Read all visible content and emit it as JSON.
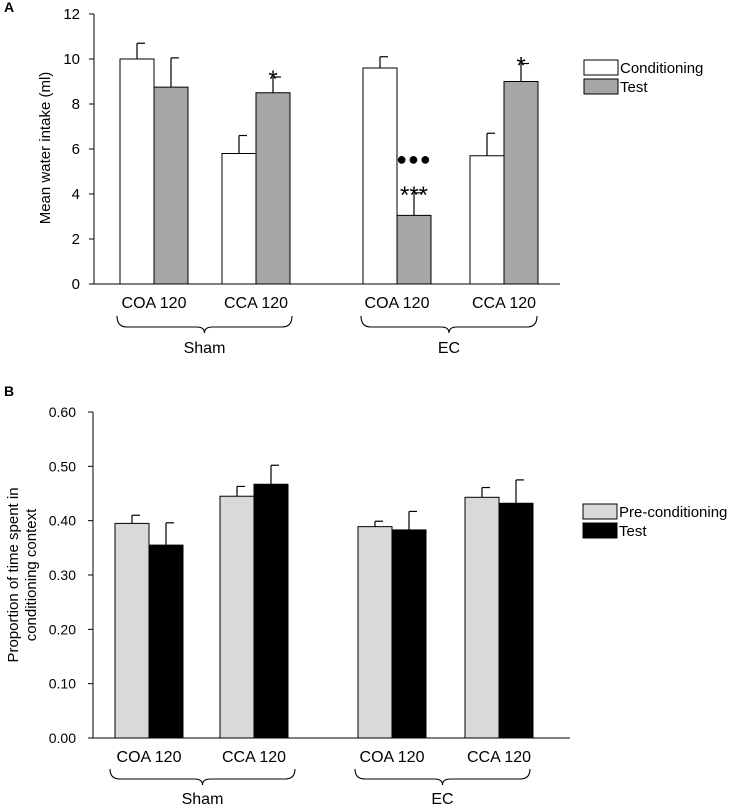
{
  "panels": [
    {
      "label": "A",
      "ylabel": "Mean water intake (ml)",
      "ylim": [
        0,
        12
      ],
      "yticks": [
        "0",
        "2",
        "4",
        "6",
        "8",
        "10",
        "12"
      ],
      "legend": [
        "Conditioning",
        "Test"
      ],
      "colors": [
        "#ffffff",
        "#a6a6a6"
      ]
    },
    {
      "label": "B",
      "ylabel_lines": [
        "Proportion of time spent in",
        "conditioning context"
      ],
      "ylim": [
        0,
        0.6
      ],
      "yticks": [
        "0.00",
        "0.10",
        "0.20",
        "0.30",
        "0.40",
        "0.50",
        "0.60"
      ],
      "legend": [
        "Pre-conditioning",
        "Test"
      ],
      "colors": [
        "#d9d9d9",
        "#000000"
      ]
    }
  ],
  "chart_data": [
    {
      "type": "bar",
      "title": "A",
      "xlabel": "",
      "ylabel": "Mean water intake (ml)",
      "ylim": [
        0,
        12
      ],
      "categories": [
        "COA 120",
        "CCA 120",
        "COA 120",
        "CCA 120"
      ],
      "groups": [
        "Sham",
        "EC"
      ],
      "series": [
        {
          "name": "Conditioning",
          "values": [
            10.0,
            5.8,
            9.6,
            5.7
          ],
          "errors": [
            0.7,
            0.8,
            0.5,
            1.0
          ]
        },
        {
          "name": "Test",
          "values": [
            8.75,
            8.5,
            3.05,
            9.0
          ],
          "errors": [
            1.3,
            0.7,
            1.0,
            0.8
          ]
        }
      ],
      "annotations": [
        {
          "category": 1,
          "series": 1,
          "text": "*"
        },
        {
          "category": 2,
          "series": 1,
          "text": "●●●"
        },
        {
          "category": 2,
          "series": 1,
          "text": "***"
        },
        {
          "category": 3,
          "series": 1,
          "text": "*"
        }
      ]
    },
    {
      "type": "bar",
      "title": "B",
      "xlabel": "",
      "ylabel": "Proportion of time spent in conditioning context",
      "ylim": [
        0,
        0.6
      ],
      "categories": [
        "COA 120",
        "CCA 120",
        "COA 120",
        "CCA 120"
      ],
      "groups": [
        "Sham",
        "EC"
      ],
      "series": [
        {
          "name": "Pre-conditioning",
          "values": [
            0.395,
            0.445,
            0.389,
            0.443
          ],
          "errors": [
            0.015,
            0.018,
            0.01,
            0.018
          ]
        },
        {
          "name": "Test",
          "values": [
            0.355,
            0.467,
            0.383,
            0.432
          ],
          "errors": [
            0.041,
            0.035,
            0.034,
            0.043
          ]
        }
      ]
    }
  ]
}
